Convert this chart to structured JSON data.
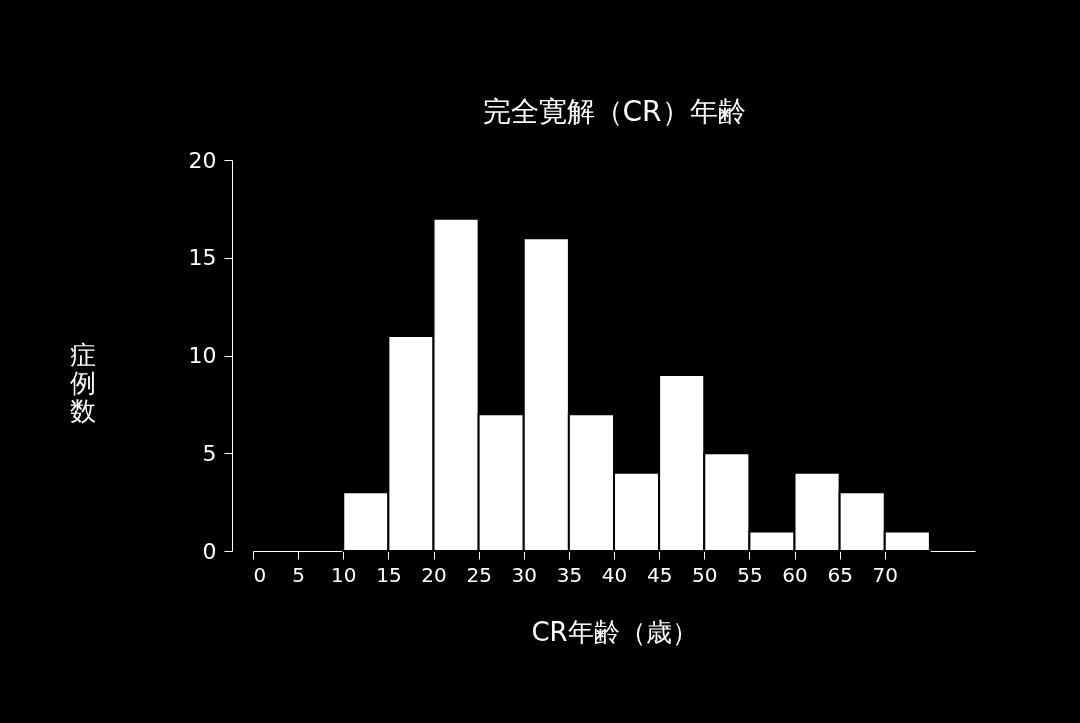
{
  "chart_data": {
    "type": "histogram",
    "title": "完全寛解（CR）年齢",
    "xlabel": "CR年齢（歳）",
    "ylabel": "症例数",
    "bins": [
      10,
      15,
      20,
      25,
      30,
      35,
      40,
      45,
      50,
      55,
      60,
      65,
      70,
      75
    ],
    "values": [
      3,
      11,
      17,
      7,
      16,
      7,
      4,
      9,
      5,
      1,
      4,
      3,
      1
    ],
    "color": "#ffffff",
    "xlim": [
      0,
      80
    ],
    "xticks": [
      0,
      5,
      10,
      15,
      20,
      25,
      30,
      35,
      40,
      45,
      50,
      55,
      60,
      65,
      70
    ],
    "ylim": [
      0,
      20
    ],
    "yticks": [
      0,
      5,
      10,
      15,
      20
    ],
    "grid": false
  }
}
